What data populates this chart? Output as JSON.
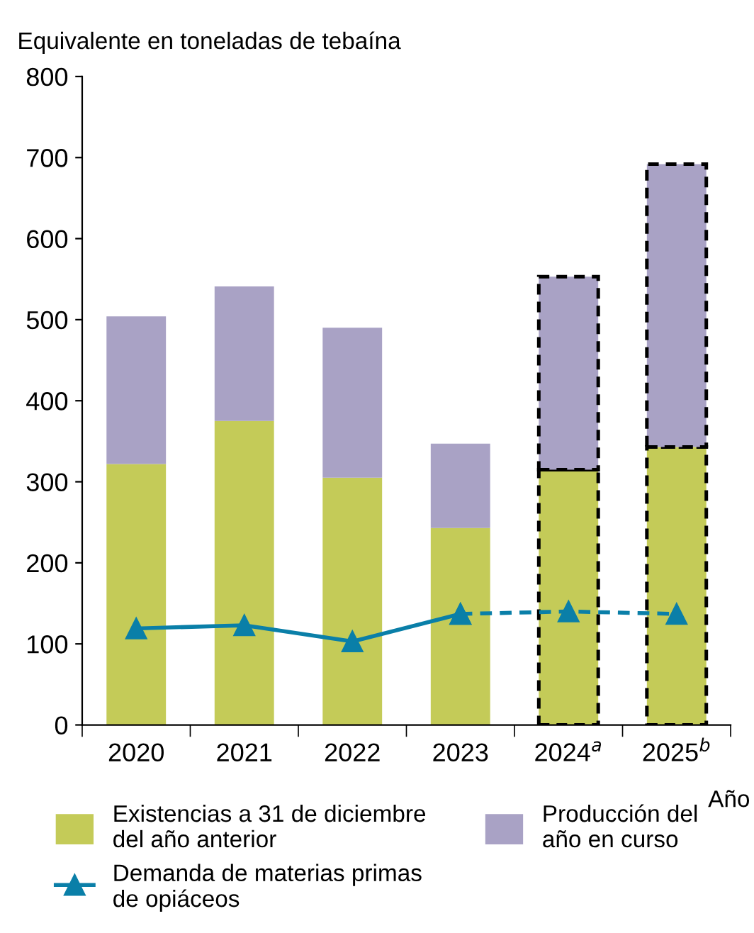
{
  "chart_data": {
    "type": "bar",
    "stacked": true,
    "ylabel": "Equivalente en toneladas de tebaína",
    "xlabel": "Año",
    "categories": [
      "2020",
      "2021",
      "2022",
      "2023",
      "2024$^{a}$",
      "2025$^{b}$"
    ],
    "series": [
      {
        "name": "Existencias a 31 de diciembre del año anterior",
        "color": "#c4cb58",
        "values": [
          322,
          375,
          305,
          243,
          null,
          null
        ]
      },
      {
        "name": "Producción del año en curso",
        "color": "#a9a2c5",
        "values": [
          182,
          166,
          185,
          104,
          null,
          null
        ]
      },
      {
        "color": "#c4cb58",
        "line_style": "dashed",
        "values": [
          null,
          null,
          null,
          null,
          315,
          343
        ]
      },
      {
        "color": "#a9a2c5",
        "line_style": "dashed",
        "values": [
          null,
          null,
          null,
          null,
          238,
          349
        ]
      },
      {
        "name": "Demanda de materias primas de opiáceos",
        "type": "line",
        "color": "#0a7fa8",
        "marker": "triangle",
        "line_style": "solid",
        "values": [
          119,
          123,
          103,
          137,
          null,
          null
        ]
      },
      {
        "type": "line",
        "color": "#0a7fa8",
        "marker": "triangle",
        "line_style": "dashed",
        "values": [
          null,
          null,
          null,
          137,
          140,
          137
        ]
      }
    ],
    "ylim": [
      0,
      800
    ],
    "yticks": [
      0,
      100,
      200,
      300,
      400,
      500,
      600,
      700,
      800
    ],
    "grid": false,
    "legend": "bottom"
  }
}
